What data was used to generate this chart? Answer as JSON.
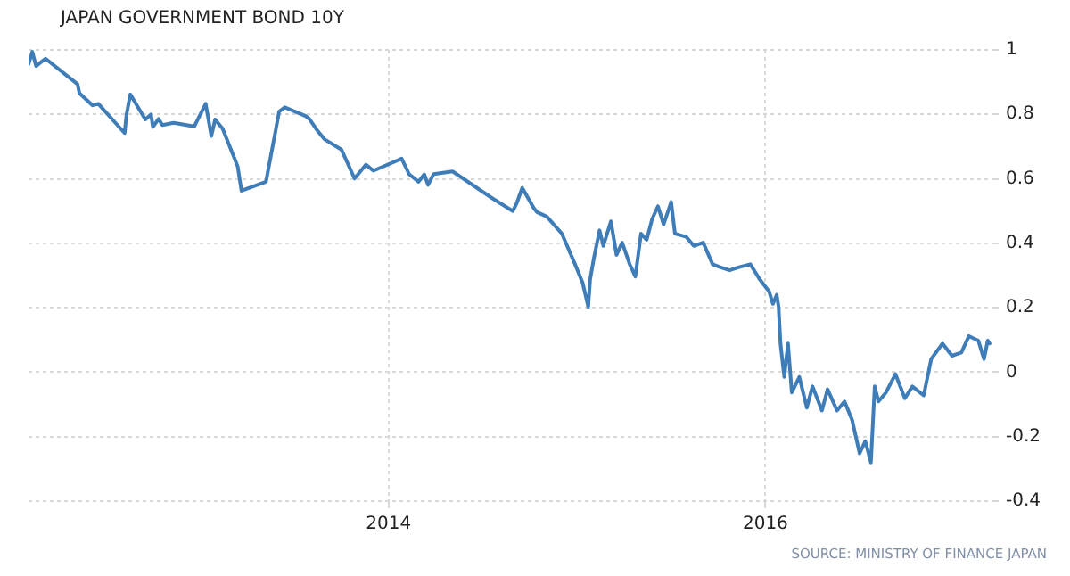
{
  "chart_data": {
    "type": "line",
    "title": "JAPAN GOVERNMENT BOND 10Y",
    "annotations": [
      "SOURCE: MINISTRY OF FINANCE JAPAN"
    ],
    "x": [
      2012.09,
      2012.11,
      2012.13,
      2012.18,
      2012.35,
      2012.36,
      2012.43,
      2012.46,
      2012.6,
      2012.61,
      2012.63,
      2012.71,
      2012.74,
      2012.75,
      2012.78,
      2012.8,
      2012.86,
      2012.97,
      2013.03,
      2013.06,
      2013.08,
      2013.12,
      2013.2,
      2013.22,
      2013.35,
      2013.42,
      2013.45,
      2013.56,
      2013.58,
      2013.62,
      2013.66,
      2013.75,
      2013.82,
      2013.88,
      2013.92,
      2014.07,
      2014.11,
      2014.16,
      2014.19,
      2014.21,
      2014.24,
      2014.34,
      2014.55,
      2014.66,
      2014.68,
      2014.71,
      2014.77,
      2014.79,
      2014.84,
      2014.92,
      2014.99,
      2015.03,
      2015.06,
      2015.07,
      2015.09,
      2015.12,
      2015.14,
      2015.18,
      2015.21,
      2015.24,
      2015.28,
      2015.31,
      2015.34,
      2015.37,
      2015.4,
      2015.43,
      2015.46,
      2015.5,
      2015.52,
      2015.58,
      2015.62,
      2015.67,
      2015.72,
      2015.76,
      2015.81,
      2015.86,
      2015.92,
      2015.95,
      2015.97,
      2016.02,
      2016.04,
      2016.06,
      2016.07,
      2016.08,
      2016.1,
      2016.12,
      2016.14,
      2016.18,
      2016.22,
      2016.25,
      2016.3,
      2016.33,
      2016.38,
      2016.42,
      2016.46,
      2016.5,
      2016.53,
      2016.56,
      2016.58,
      2016.6,
      2016.64,
      2016.69,
      2016.74,
      2016.78,
      2016.84,
      2016.88,
      2016.94,
      2016.99,
      2017.04,
      2017.08,
      2017.13,
      2017.16,
      2017.18,
      2017.19
    ],
    "series": [
      {
        "color": "#3f7db8",
        "values": [
          0.956,
          0.994,
          0.95,
          0.973,
          0.894,
          0.866,
          0.828,
          0.833,
          0.742,
          0.8,
          0.862,
          0.784,
          0.8,
          0.761,
          0.786,
          0.767,
          0.774,
          0.763,
          0.833,
          0.733,
          0.784,
          0.756,
          0.638,
          0.563,
          0.591,
          0.809,
          0.822,
          0.795,
          0.786,
          0.752,
          0.723,
          0.691,
          0.601,
          0.644,
          0.625,
          0.663,
          0.614,
          0.591,
          0.614,
          0.581,
          0.615,
          0.623,
          0.54,
          0.5,
          0.524,
          0.572,
          0.51,
          0.496,
          0.483,
          0.43,
          0.335,
          0.278,
          0.203,
          0.288,
          0.354,
          0.44,
          0.392,
          0.468,
          0.364,
          0.402,
          0.335,
          0.297,
          0.43,
          0.411,
          0.477,
          0.515,
          0.459,
          0.528,
          0.43,
          0.42,
          0.392,
          0.402,
          0.335,
          0.326,
          0.316,
          0.326,
          0.335,
          0.307,
          0.288,
          0.25,
          0.212,
          0.24,
          0.203,
          0.089,
          -0.015,
          0.089,
          -0.063,
          -0.015,
          -0.11,
          -0.044,
          -0.119,
          -0.053,
          -0.119,
          -0.091,
          -0.148,
          -0.252,
          -0.214,
          -0.28,
          -0.044,
          -0.091,
          -0.063,
          -0.006,
          -0.081,
          -0.044,
          -0.072,
          0.041,
          0.089,
          0.051,
          0.061,
          0.112,
          0.098,
          0.041,
          0.098,
          0.089
        ]
      }
    ],
    "xlim": [
      2012.09,
      2017.2
    ],
    "xticks": [
      2014,
      2016
    ],
    "ylim": [
      -0.4,
      1
    ],
    "yticks": [
      -0.4,
      -0.2,
      0,
      0.2,
      0.4,
      0.6,
      0.8,
      1
    ],
    "grid": true,
    "legend": false,
    "marker": "none",
    "line_style": "solid"
  }
}
